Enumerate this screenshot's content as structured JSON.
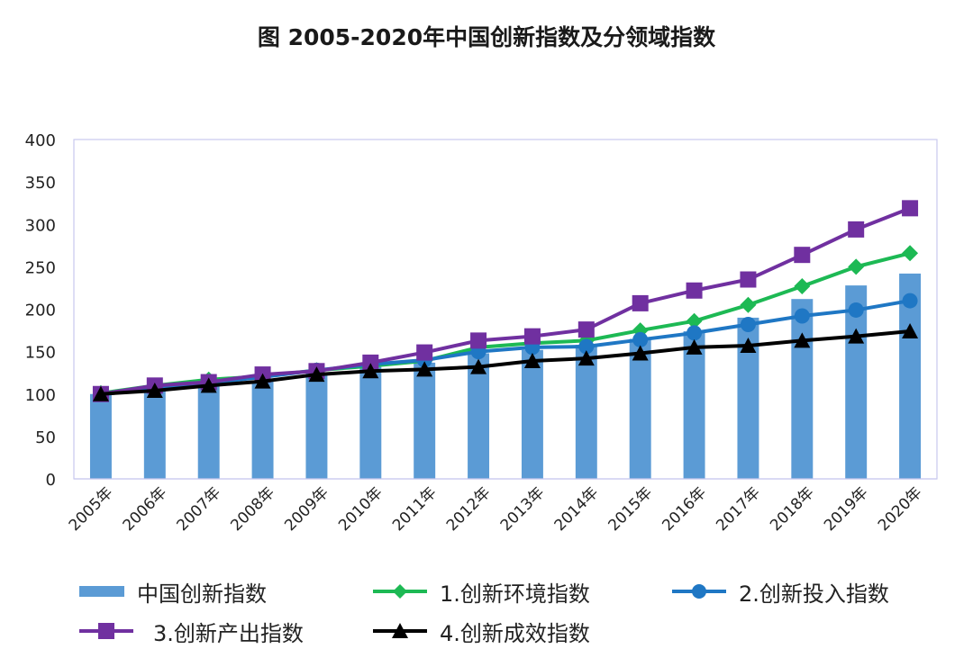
{
  "chart_data": {
    "type": "bar+line",
    "title": "图 2005-2020年中国创新指数及分领域指数",
    "categories": [
      "2005年",
      "2006年",
      "2007年",
      "2008年",
      "2009年",
      "2010年",
      "2011年",
      "2012年",
      "2013年",
      "2014年",
      "2015年",
      "2016年",
      "2017年",
      "2018年",
      "2019年",
      "2020年"
    ],
    "ylim": [
      0,
      400
    ],
    "yticks": [
      0,
      50,
      100,
      150,
      200,
      250,
      300,
      350,
      400
    ],
    "xlabel": "",
    "ylabel": "",
    "grid": false,
    "bar_series": {
      "name": "中国创新指数",
      "color": "#5B9BD5",
      "values": [
        100,
        106,
        110,
        116,
        125,
        132,
        137,
        148,
        152,
        158,
        165,
        174,
        190,
        212,
        228,
        242
      ]
    },
    "line_series": [
      {
        "name": "1.创新环境指数",
        "color": "#1DB954",
        "marker": "diamond",
        "values": [
          101,
          110,
          117,
          121,
          128,
          133,
          139,
          155,
          160,
          163,
          175,
          186,
          205,
          227,
          250,
          266
        ]
      },
      {
        "name": "2.创新投入指数",
        "color": "#1F77C4",
        "marker": "circle",
        "values": [
          100,
          106,
          113,
          120,
          128,
          135,
          140,
          150,
          155,
          156,
          164,
          172,
          182,
          192,
          199,
          210
        ]
      },
      {
        "name": "3.创新产出指数",
        "color": "#7030A0",
        "marker": "square",
        "values": [
          100,
          110,
          114,
          123,
          127,
          137,
          149,
          163,
          168,
          176,
          207,
          222,
          235,
          264,
          294,
          319
        ]
      },
      {
        "name": "4.创新成效指数",
        "color": "#000000",
        "marker": "triangle",
        "values": [
          100,
          104,
          110,
          115,
          123,
          127,
          129,
          132,
          139,
          142,
          148,
          155,
          157,
          163,
          168,
          174
        ]
      }
    ],
    "legend_position": "bottom"
  }
}
